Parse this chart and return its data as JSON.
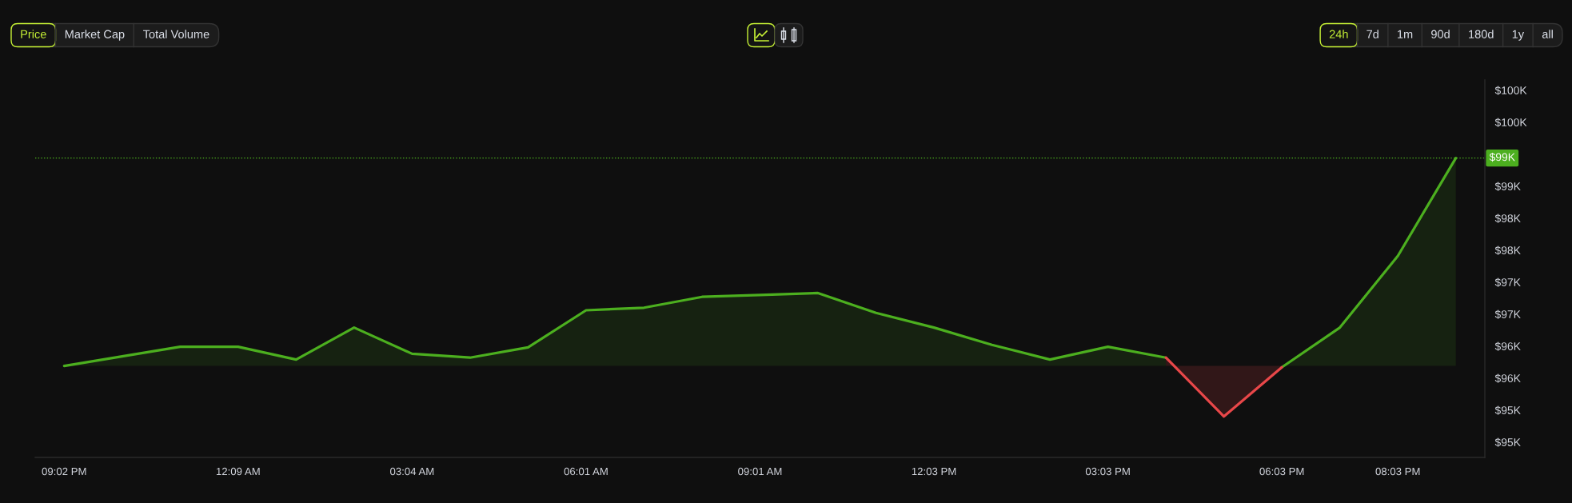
{
  "chart_data": {
    "type": "area",
    "categories": [
      "09:02 PM",
      null,
      null,
      "12:09 AM",
      null,
      null,
      "03:04 AM",
      null,
      null,
      "06:01 AM",
      null,
      null,
      "09:01 AM",
      null,
      null,
      "12:03 PM",
      null,
      null,
      "03:03 PM",
      null,
      null,
      "06:03 PM",
      null,
      "08:03 PM",
      null
    ],
    "series": [
      {
        "color": "#4caf1f",
        "values": [
          96190,
          96340,
          96490,
          96490,
          96290,
          96790,
          96380,
          96320,
          96480,
          97060,
          97100,
          97270,
          97300,
          97330,
          97020,
          96790,
          96520,
          96290,
          96490,
          96320,
          null,
          96170,
          96790,
          97910,
          99440
        ]
      },
      {
        "color": "#e84749",
        "values": [
          null,
          null,
          null,
          null,
          null,
          null,
          null,
          null,
          null,
          null,
          null,
          null,
          null,
          null,
          null,
          null,
          null,
          null,
          null,
          96320,
          95400,
          96170,
          null,
          null,
          null
        ]
      }
    ],
    "ylim": [
      94760,
      100660
    ],
    "yticks": [
      {
        "value": 95000,
        "label": "$95K"
      },
      {
        "value": 95500,
        "label": "$95K"
      },
      {
        "value": 96000,
        "label": "$96K"
      },
      {
        "value": 96500,
        "label": "$96K"
      },
      {
        "value": 97000,
        "label": "$97K"
      },
      {
        "value": 97500,
        "label": "$97K"
      },
      {
        "value": 98000,
        "label": "$98K"
      },
      {
        "value": 98500,
        "label": "$98K"
      },
      {
        "value": 99000,
        "label": "$99K"
      },
      {
        "value": 100000,
        "label": "$100K"
      },
      {
        "value": 100500,
        "label": "$100K"
      }
    ],
    "ref_lines": [
      {
        "axis": "y",
        "value": 99440,
        "label": "$99K",
        "color": "#4caf1f",
        "line_style": "dotted"
      }
    ],
    "annotations": [
      "Price",
      "Market Cap",
      "Total Volume",
      "24h",
      "7d",
      "1m",
      "90d",
      "180d",
      "1y",
      "all"
    ]
  }
}
